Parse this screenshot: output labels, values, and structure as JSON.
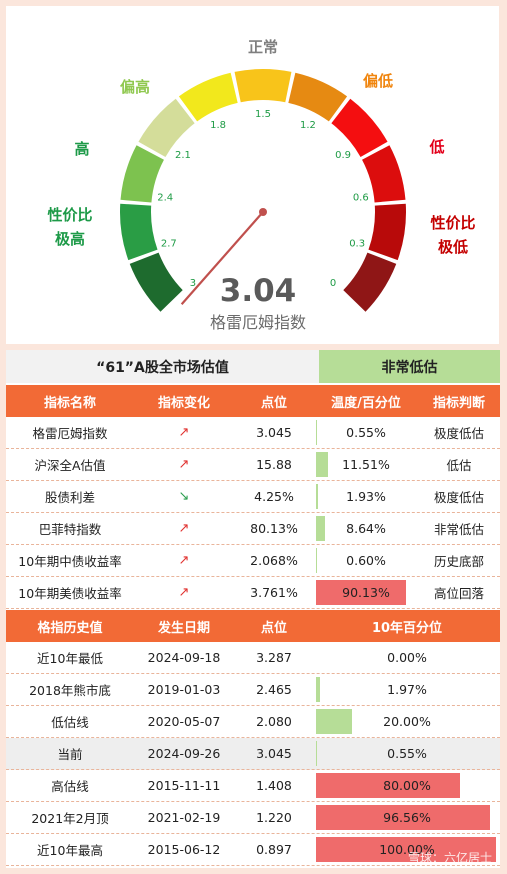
{
  "gauge": {
    "value": "3.04",
    "name": "格雷厄姆指数",
    "zones": [
      {
        "label": "性价比\n极高",
        "color": "#2e8b3a"
      },
      {
        "label": "高",
        "color": "#78c850"
      },
      {
        "label": "偏高",
        "color": "#a8d36a"
      },
      {
        "label": "正常",
        "color": "#808080"
      },
      {
        "label": "偏低",
        "color": "#f08a00"
      },
      {
        "label": "低",
        "color": "#e0001a"
      },
      {
        "label": "性价比\n极低",
        "color": "#c00000"
      }
    ],
    "zone_labels": [
      "性价比",
      "极高",
      "高",
      "偏高",
      "正常",
      "偏低",
      "低",
      "性价比",
      "极低"
    ],
    "ticks": [
      "3",
      "2.7",
      "2.4",
      "2.1",
      "1.8",
      "1.5",
      "1.2",
      "0.9",
      "0.6",
      "0.3",
      "0"
    ],
    "scale_min": 0,
    "scale_max": 3,
    "reading": 3.04,
    "segment_colors": [
      "#1e6b2e",
      "#2a9d45",
      "#7dc24f",
      "#d4dd9a",
      "#f2e81c",
      "#f8c41a",
      "#e68a12",
      "#f40e10",
      "#dc0d0d",
      "#b80a0a",
      "#8f1616"
    ],
    "needle_color": "#c0504d"
  },
  "market": {
    "title": "“61”A股全市场估值",
    "verdict": "非常低估",
    "verdict_color": "#b6dd97"
  },
  "indicators": {
    "headers": [
      "指标名称",
      "指标变化",
      "点位",
      "温度/百分位",
      "指标判断"
    ],
    "rows": [
      {
        "name": "格雷厄姆指数",
        "change": "↗",
        "direction": "up",
        "value": "3.045",
        "pct": "0.55%",
        "pct_value": 0.55,
        "bar": "green",
        "judgement": "极度低估"
      },
      {
        "name": "沪深全A估值",
        "change": "↗",
        "direction": "up",
        "value": "15.88",
        "pct": "11.51%",
        "pct_value": 11.51,
        "bar": "green",
        "judgement": "低估"
      },
      {
        "name": "股债利差",
        "change": "↘",
        "direction": "down",
        "value": "4.25%",
        "pct": "1.93%",
        "pct_value": 1.93,
        "bar": "green",
        "judgement": "极度低估"
      },
      {
        "name": "巴菲特指数",
        "change": "↗",
        "direction": "up",
        "value": "80.13%",
        "pct": "8.64%",
        "pct_value": 8.64,
        "bar": "green",
        "judgement": "非常低估"
      },
      {
        "name": "10年期中债收益率",
        "change": "↗",
        "direction": "up",
        "value": "2.068%",
        "pct": "0.60%",
        "pct_value": 0.6,
        "bar": "green",
        "judgement": "历史底部"
      },
      {
        "name": "10年期美债收益率",
        "change": "↗",
        "direction": "up",
        "value": "3.761%",
        "pct": "90.13%",
        "pct_value": 90.13,
        "bar": "red",
        "judgement": "高位回落"
      }
    ]
  },
  "history": {
    "headers": [
      "格指历史值",
      "发生日期",
      "点位",
      "10年百分位"
    ],
    "rows": [
      {
        "name": "近10年最低",
        "date": "2024-09-18",
        "value": "3.287",
        "pct": "0.00%",
        "pct_value": 0.0,
        "bar": "green",
        "current": false
      },
      {
        "name": "2018年熊市底",
        "date": "2019-01-03",
        "value": "2.465",
        "pct": "1.97%",
        "pct_value": 1.97,
        "bar": "green",
        "current": false
      },
      {
        "name": "低估线",
        "date": "2020-05-07",
        "value": "2.080",
        "pct": "20.00%",
        "pct_value": 20.0,
        "bar": "green",
        "current": false
      },
      {
        "name": "当前",
        "date": "2024-09-26",
        "value": "3.045",
        "pct": "0.55%",
        "pct_value": 0.55,
        "bar": "green",
        "current": true
      },
      {
        "name": "高估线",
        "date": "2015-11-11",
        "value": "1.408",
        "pct": "80.00%",
        "pct_value": 80.0,
        "bar": "red",
        "current": false
      },
      {
        "name": "2021年2月顶",
        "date": "2021-02-19",
        "value": "1.220",
        "pct": "96.56%",
        "pct_value": 96.56,
        "bar": "red",
        "current": false
      },
      {
        "name": "近10年最高",
        "date": "2015-06-12",
        "value": "0.897",
        "pct": "100.00%",
        "pct_value": 100.0,
        "bar": "red",
        "current": false
      }
    ]
  },
  "watermark": "雪球：六亿居士"
}
